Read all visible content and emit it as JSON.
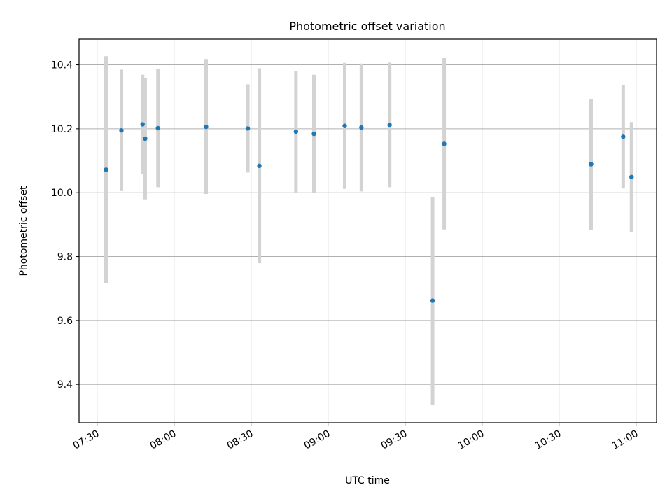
{
  "chart_data": {
    "type": "scatter",
    "title": "Photometric offset variation",
    "xlabel": "UTC time",
    "ylabel": "Photometric offset",
    "xlim": [
      "07:23",
      "11:08"
    ],
    "ylim": [
      9.28,
      10.48
    ],
    "x_ticks": [
      "07:30",
      "08:00",
      "08:30",
      "09:00",
      "09:30",
      "10:00",
      "10:30",
      "11:00"
    ],
    "y_ticks": [
      9.4,
      9.6,
      9.8,
      10.0,
      10.2,
      10.4
    ],
    "grid": true,
    "point_color": "#1f77b4",
    "errorbar_color": "#d3d3d3",
    "points": [
      {
        "x": "07:33:30",
        "y": 10.072,
        "err": 0.355
      },
      {
        "x": "07:39:30",
        "y": 10.195,
        "err": 0.19
      },
      {
        "x": "07:47:45",
        "y": 10.214,
        "err": 0.155
      },
      {
        "x": "07:48:45",
        "y": 10.169,
        "err": 0.19
      },
      {
        "x": "07:53:45",
        "y": 10.202,
        "err": 0.185
      },
      {
        "x": "08:12:30",
        "y": 10.206,
        "err": 0.21
      },
      {
        "x": "08:28:45",
        "y": 10.201,
        "err": 0.138
      },
      {
        "x": "08:33:15",
        "y": 10.084,
        "err": 0.305
      },
      {
        "x": "08:47:30",
        "y": 10.191,
        "err": 0.19
      },
      {
        "x": "08:54:30",
        "y": 10.184,
        "err": 0.185
      },
      {
        "x": "09:06:30",
        "y": 10.209,
        "err": 0.197
      },
      {
        "x": "09:13:00",
        "y": 10.204,
        "err": 0.2
      },
      {
        "x": "09:24:00",
        "y": 10.212,
        "err": 0.195
      },
      {
        "x": "09:40:45",
        "y": 9.662,
        "err": 0.325
      },
      {
        "x": "09:45:15",
        "y": 10.153,
        "err": 0.268
      },
      {
        "x": "10:42:30",
        "y": 10.089,
        "err": 0.205
      },
      {
        "x": "10:55:00",
        "y": 10.175,
        "err": 0.162
      },
      {
        "x": "10:58:15",
        "y": 10.049,
        "err": 0.172
      }
    ]
  }
}
